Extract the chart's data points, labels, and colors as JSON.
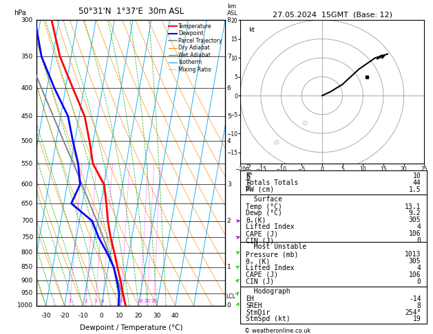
{
  "title_left": "50°31'N  1°37'E  30m ASL",
  "title_right": "27.05.2024  15GMT  (Base: 12)",
  "xlabel": "Dewpoint / Temperature (°C)",
  "background_color": "#ffffff",
  "pressure_levels": [
    300,
    350,
    400,
    450,
    500,
    550,
    600,
    650,
    700,
    750,
    800,
    850,
    900,
    950,
    1000
  ],
  "temp_xlim": [
    -35,
    40
  ],
  "skew_factor": 27.0,
  "isotherm_color": "#00aaff",
  "dry_adiabat_color": "#ff8c00",
  "wet_adiabat_color": "#00aa00",
  "mixing_ratio_color": "#ff00ff",
  "temperature_profile": {
    "pressure": [
      1000,
      950,
      900,
      850,
      800,
      750,
      700,
      650,
      600,
      550,
      500,
      450,
      400,
      350,
      300
    ],
    "temp": [
      13.1,
      10.5,
      8.0,
      5.0,
      2.0,
      -1.5,
      -4.5,
      -7.0,
      -10.0,
      -18.0,
      -22.0,
      -27.0,
      -36.0,
      -46.0,
      -54.0
    ],
    "color": "#ff0000",
    "lw": 2.0
  },
  "dewpoint_profile": {
    "pressure": [
      1000,
      950,
      900,
      850,
      800,
      750,
      700,
      650,
      600,
      550,
      500,
      450,
      400,
      350,
      300
    ],
    "temp": [
      9.2,
      8.5,
      6.0,
      3.0,
      -2.0,
      -8.0,
      -13.0,
      -26.0,
      -23.0,
      -26.0,
      -31.0,
      -36.0,
      -46.0,
      -56.0,
      -63.0
    ],
    "color": "#0000ff",
    "lw": 2.0
  },
  "parcel_profile": {
    "pressure": [
      1000,
      950,
      900,
      850,
      800,
      750,
      700,
      650,
      600,
      550,
      500,
      450,
      400,
      350,
      300
    ],
    "temp": [
      13.1,
      10.0,
      6.5,
      3.0,
      -1.0,
      -5.5,
      -10.5,
      -16.0,
      -22.0,
      -28.5,
      -36.0,
      -44.0,
      -53.0,
      -63.0,
      -72.0
    ],
    "color": "#888888",
    "lw": 1.5
  },
  "mixing_ratio_values": [
    1,
    2,
    3,
    4,
    8,
    16,
    20,
    25
  ],
  "km_labels": {
    "pressures": [
      1000,
      850,
      700,
      600,
      500,
      450,
      400,
      350,
      300
    ],
    "values": [
      0,
      1,
      2,
      3,
      4,
      5,
      6,
      7,
      8
    ]
  },
  "lcl_pressure": 962,
  "wind_levels": [
    1000,
    950,
    900,
    850,
    800,
    750,
    700
  ],
  "wind_colors": [
    "#00cc00",
    "#00cc00",
    "#00cc00",
    "#00cc00",
    "#00cc00",
    "#8800cc",
    "#8800cc"
  ],
  "wind_speeds_kt": [
    5,
    8,
    10,
    12,
    15,
    18,
    20
  ],
  "wind_dirs_deg": [
    200,
    210,
    220,
    230,
    240,
    250,
    260
  ],
  "stats": {
    "K": 10,
    "TT": 44,
    "PW": 1.5,
    "surf_temp": 13.1,
    "surf_dewp": 9.2,
    "surf_theta_e": 305,
    "surf_li": 4,
    "surf_cape": 106,
    "surf_cin": 0,
    "mu_pressure": 1013,
    "mu_theta_e": 305,
    "mu_li": 4,
    "mu_cape": 106,
    "mu_cin": 0,
    "eh": -14,
    "sreh": 8,
    "stmdir": 254,
    "stmspd": 19
  },
  "copyright": "© weatheronline.co.uk"
}
